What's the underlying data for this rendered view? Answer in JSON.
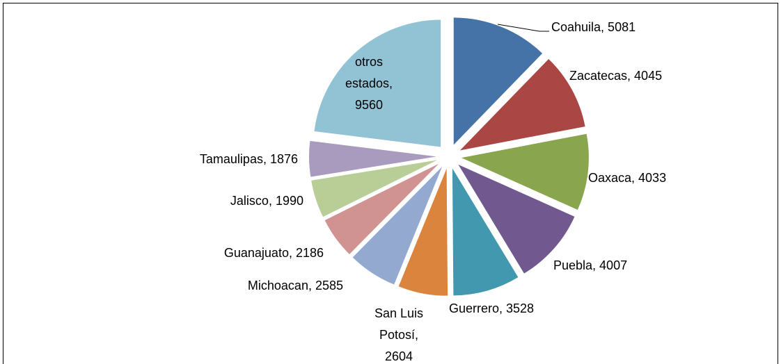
{
  "chart_data": {
    "type": "pie",
    "values": [
      5081,
      4045,
      4033,
      4007,
      3528,
      2604,
      2585,
      2186,
      1990,
      1876,
      9560
    ],
    "value_labels": [
      "Coahuila, 5081",
      "Zacatecas, 4045",
      "Oaxaca, 4033",
      "Puebla, 4007",
      "Guerrero, 3528",
      "San Luis Potosí, 2604",
      "Michoacan, 2585",
      "Guanajuato, 2186",
      "Jalisco, 1990",
      "Tamaulipas, 1876",
      "otros estados, 9560"
    ],
    "colors": [
      "#4572A7",
      "#AA4643",
      "#89A54E",
      "#71588F",
      "#4198AF",
      "#DB843D",
      "#93A9CF",
      "#D19392",
      "#B9CD96",
      "#A99BBD",
      "#92C3D4"
    ]
  }
}
